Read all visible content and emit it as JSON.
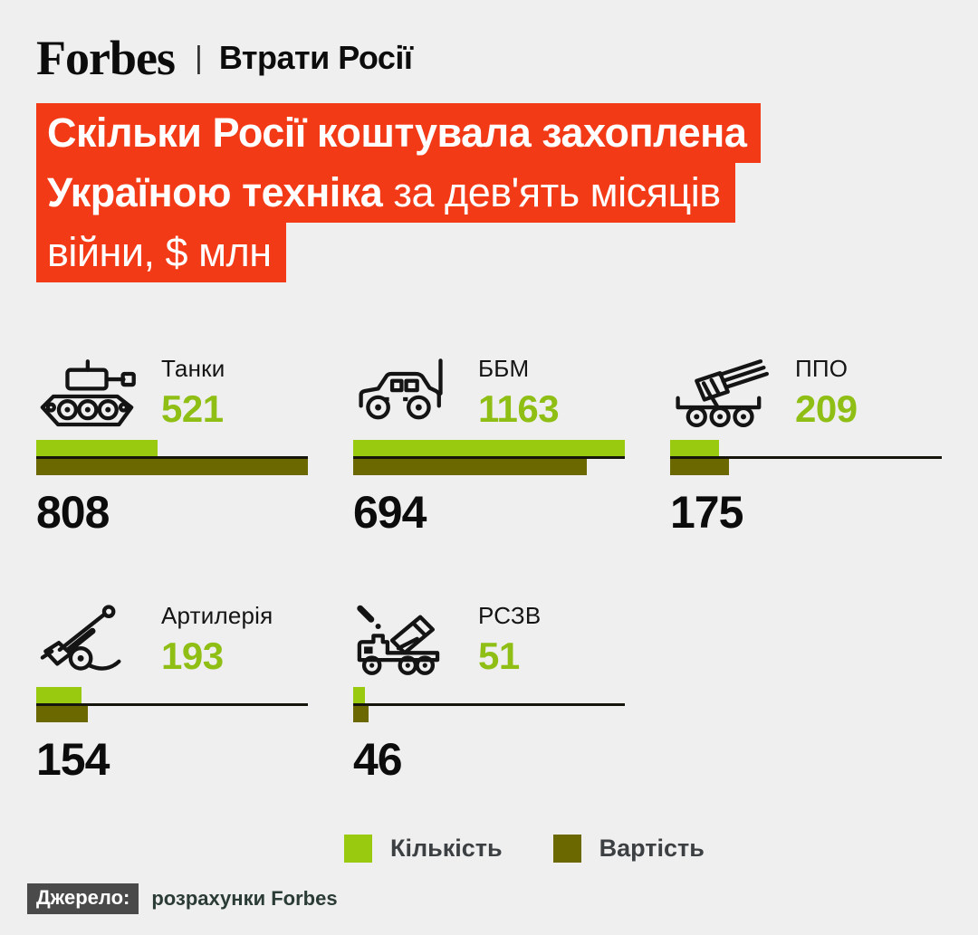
{
  "header": {
    "brand": "Forbes",
    "separator": "|",
    "section": "Втрати Росії"
  },
  "title": {
    "line1_bold": "Скільки Росії коштувала захоплена",
    "line2_bold": "Україною техніка",
    "line2_regular": " за дев'ять місяців",
    "line3_regular": "війни, $ млн"
  },
  "chart_data": {
    "type": "bar",
    "title": "Скільки Росії коштувала захоплена Україною техніка за дев'ять місяців війни, $ млн",
    "categories": [
      "Танки",
      "ББМ",
      "ППО",
      "Артилерія",
      "РСЗВ"
    ],
    "series": [
      {
        "name": "Кількість",
        "values": [
          521,
          1163,
          209,
          193,
          51
        ],
        "color": "#9aca10"
      },
      {
        "name": "Вартість",
        "values": [
          808,
          694,
          175,
          154,
          46
        ],
        "color": "#6b6800"
      }
    ],
    "cost_unit": "$ млн",
    "legend_position": "bottom",
    "layout": "small multiples, 3 columns; each series scaled to its own max (1163 / 808)"
  },
  "scale": {
    "quantity_max": 1163,
    "cost_max": 808
  },
  "cards": [
    {
      "label": "Танки",
      "quantity": 521,
      "cost": 808,
      "icon": "tank-icon"
    },
    {
      "label": "ББМ",
      "quantity": 1163,
      "cost": 694,
      "icon": "armored-vehicle-icon"
    },
    {
      "label": "ППО",
      "quantity": 209,
      "cost": 175,
      "icon": "air-defense-icon"
    },
    {
      "label": "Артилерія",
      "quantity": 193,
      "cost": 154,
      "icon": "howitzer-icon"
    },
    {
      "label": "РСЗВ",
      "quantity": 51,
      "cost": 46,
      "icon": "mlrs-icon"
    }
  ],
  "legend": [
    {
      "label": "Кількість",
      "color": "#9aca10"
    },
    {
      "label": "Вартість",
      "color": "#6b6800"
    }
  ],
  "footer": {
    "source_label": "Джерело:",
    "source_text": "розрахунки Forbes"
  },
  "colors": {
    "background": "#efefef",
    "accent_red": "#f23a17",
    "quantity_green": "#9aca10",
    "cost_olive": "#6b6800",
    "number_green": "#8fbe14"
  }
}
